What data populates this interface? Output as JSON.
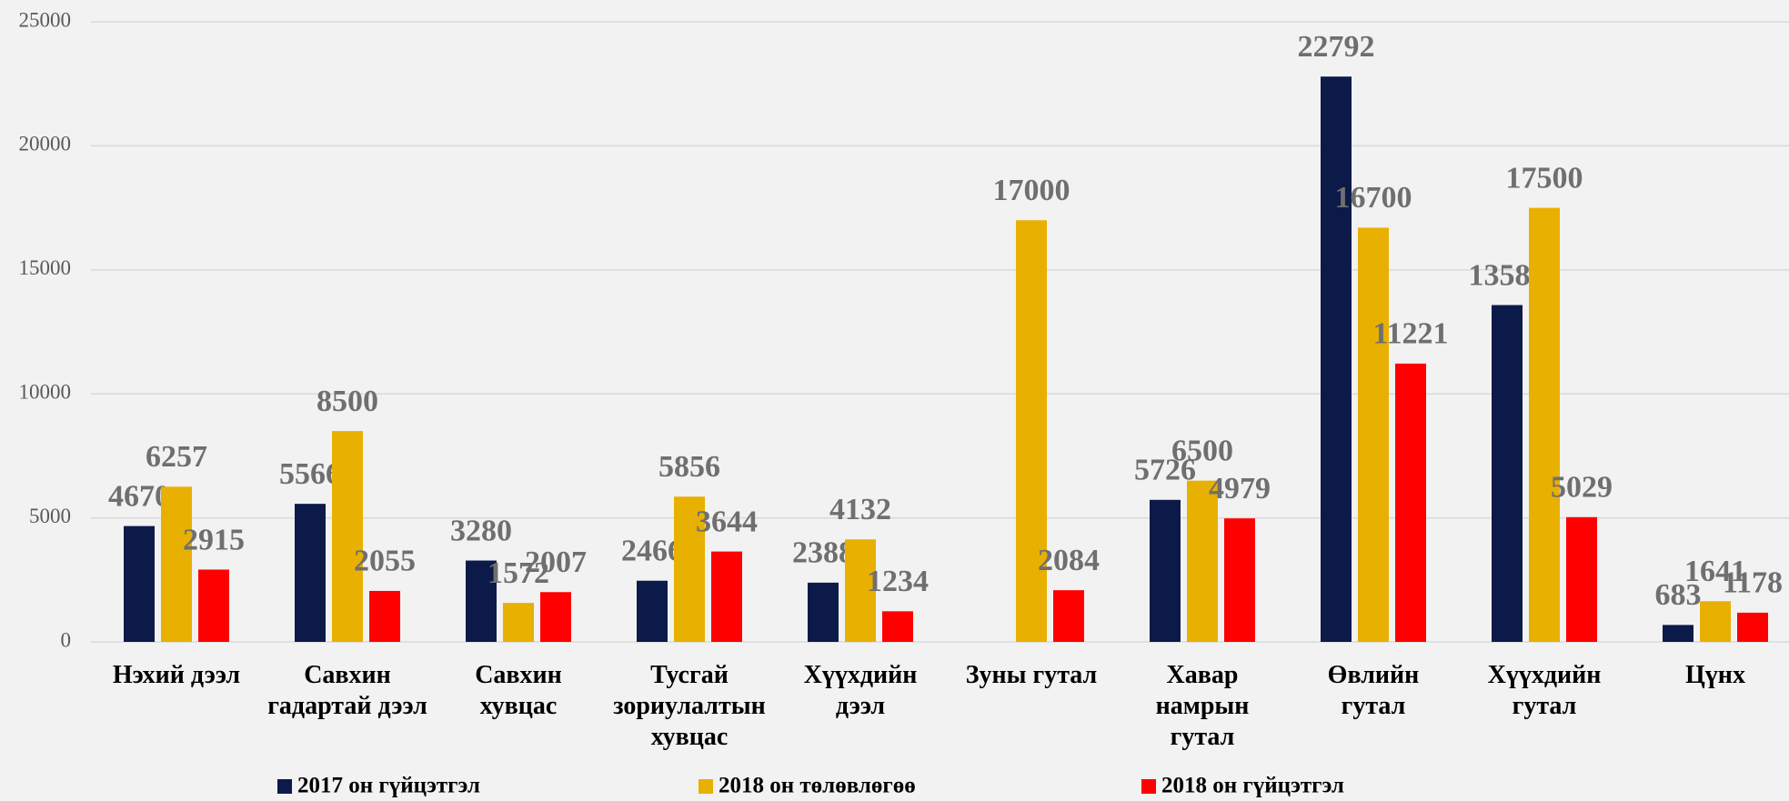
{
  "chart_data": {
    "type": "bar",
    "categories": [
      "Нэхий дээл",
      "Савхин гадартай дээл",
      "Савхин хувцас",
      "Тусгай зориулалтын хувцас",
      "Хүүхдийн дээл",
      "Зуны гутал",
      "Хавар намрын гутал",
      "Өвлийн гутал",
      "Хүүхдийн гутал",
      "Цүнх"
    ],
    "series": [
      {
        "name": "2017 он гүйцэтгэл",
        "color": "#0c1a4a",
        "values": [
          4670,
          5566,
          3280,
          2466,
          2388,
          null,
          5726,
          22792,
          13580,
          683
        ]
      },
      {
        "name": "2018 он төлөвлөгөө",
        "color": "#e8b000",
        "values": [
          6257,
          8500,
          1572,
          5856,
          4132,
          17000,
          6500,
          16700,
          17500,
          1641
        ]
      },
      {
        "name": "2018 он гүйцэтгэл",
        "color": "#ff0000",
        "values": [
          2915,
          2055,
          2007,
          3644,
          1234,
          2084,
          4979,
          11221,
          5029,
          1178
        ]
      }
    ],
    "ylim": [
      0,
      25000
    ],
    "yticks": [
      0,
      5000,
      10000,
      15000,
      20000,
      25000
    ],
    "grid": true,
    "legend": "bottom"
  }
}
